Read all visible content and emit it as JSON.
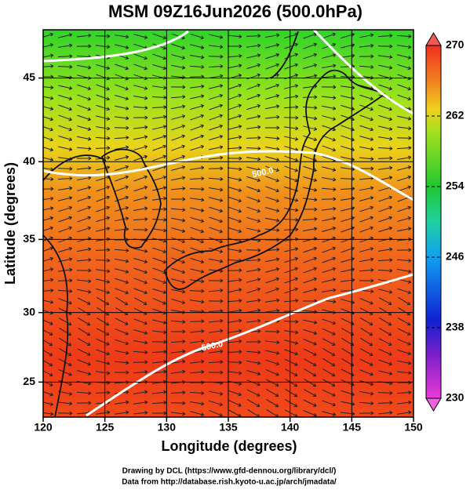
{
  "chart_data": {
    "type": "map",
    "title": "MSM 09Z16Jun2026 (500.0hPa)",
    "x_label": "Longitude (degrees)",
    "y_label": "Latitude  (degrees)",
    "xlim": [
      120,
      150
    ],
    "ylim": [
      22.4,
      47.7
    ],
    "xticks": [
      120,
      125,
      130,
      135,
      140,
      145,
      150
    ],
    "yticks": [
      25,
      30,
      35,
      40,
      45
    ],
    "projection": "mercator",
    "grid": true,
    "colorbar": {
      "lim": [
        230,
        270
      ],
      "ticks": [
        230,
        238,
        246,
        254,
        262,
        270
      ]
    },
    "annotations": [
      {
        "text": "500.0",
        "x": 137.8,
        "y": 39.3
      },
      {
        "text": "500.0",
        "x": 133.7,
        "y": 27.6
      }
    ],
    "footer": [
      "Drawing by DCL (https://www.gfd-dennou.org/library/dcl/)",
      "Data from http://database.rish.kyoto-u.ac.jp/arch/jmadata/"
    ]
  }
}
